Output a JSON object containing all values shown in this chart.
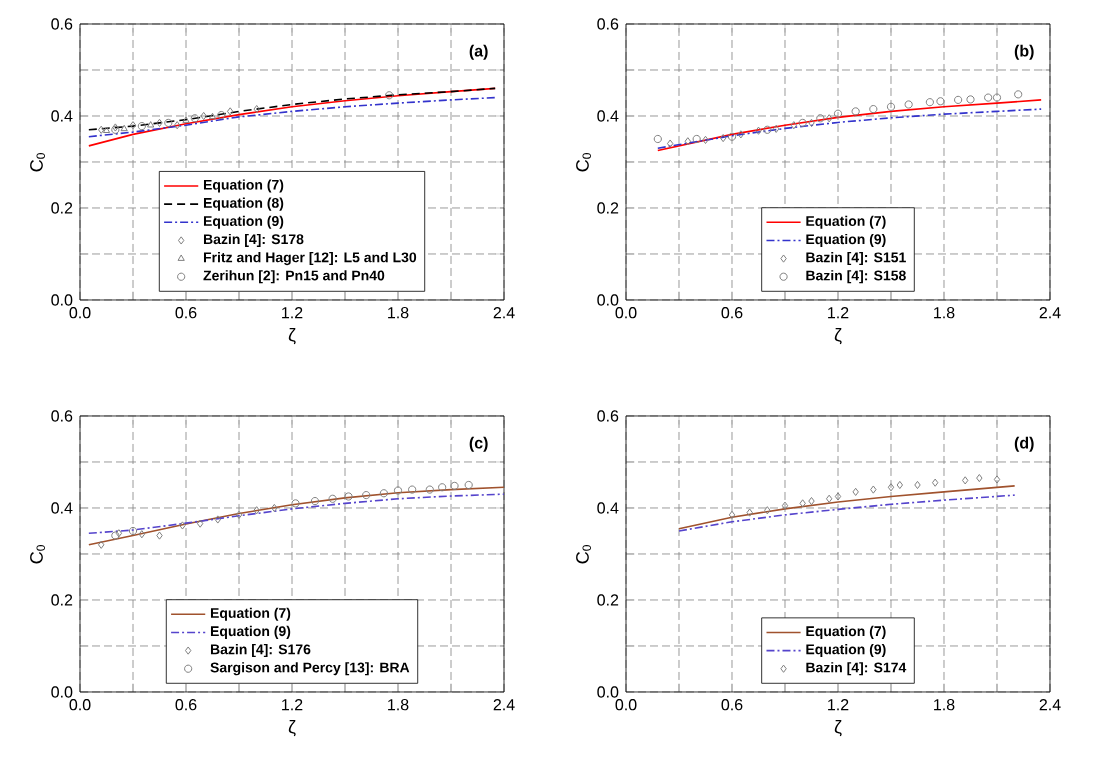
{
  "chart_data": [
    {
      "type": "line",
      "xlabel": "ζ",
      "ylabel": "C$_{0}$",
      "annotations": [
        "(a)"
      ],
      "grid": true,
      "legend": "bottom",
      "xlim": [
        0,
        2.4
      ],
      "ylim": [
        0,
        0.6
      ],
      "xticks": [
        {
          "value": 0,
          "label": "0.0"
        },
        {
          "value": 0.3,
          "label": null
        },
        {
          "value": 0.6,
          "label": "0.6"
        },
        {
          "value": 0.9,
          "label": null
        },
        {
          "value": 1.2,
          "label": "1.2"
        },
        {
          "value": 1.5,
          "label": null
        },
        {
          "value": 1.8,
          "label": "1.8"
        },
        {
          "value": 2.1,
          "label": null
        },
        {
          "value": 2.4,
          "label": "2.4"
        }
      ],
      "yticks": [
        {
          "value": 0,
          "label": "0.0"
        },
        {
          "value": 0.1,
          "label": null
        },
        {
          "value": 0.2,
          "label": "0.2"
        },
        {
          "value": 0.3,
          "label": null
        },
        {
          "value": 0.4,
          "label": "0.4"
        },
        {
          "value": 0.5,
          "label": null
        },
        {
          "value": 0.6,
          "label": "0.6"
        }
      ],
      "series": [
        {
          "name": "Equation (7)",
          "type": "line",
          "color": "#ff0000",
          "line_style": "solid",
          "marker": "none",
          "x": [
            0.05,
            0.3,
            0.6,
            0.9,
            1.2,
            1.5,
            1.8,
            2.1,
            2.35
          ],
          "values": [
            0.335,
            0.36,
            0.383,
            0.403,
            0.42,
            0.433,
            0.444,
            0.453,
            0.46
          ]
        },
        {
          "name": "Equation (8)",
          "type": "line",
          "color": "#000000",
          "line_style": "dashed",
          "marker": "none",
          "x": [
            0.05,
            0.3,
            0.6,
            0.9,
            1.2,
            1.5,
            1.8,
            2.1,
            2.35
          ],
          "values": [
            0.37,
            0.378,
            0.392,
            0.41,
            0.425,
            0.437,
            0.446,
            0.453,
            0.46
          ]
        },
        {
          "name": "Equation (9)",
          "type": "line",
          "color": "#3333cc",
          "line_style": "dashdot",
          "marker": "none",
          "x": [
            0.05,
            0.3,
            0.6,
            0.9,
            1.2,
            1.5,
            1.8,
            2.1,
            2.35
          ],
          "values": [
            0.355,
            0.365,
            0.38,
            0.398,
            0.41,
            0.42,
            0.428,
            0.435,
            0.44
          ]
        },
        {
          "name": "Bazin [4]: S178",
          "type": "scatter",
          "color": "#808080",
          "marker": "diamond",
          "x": [
            0.12,
            0.2,
            0.3,
            0.45,
            0.55,
            0.7,
            0.85,
            1.0
          ],
          "values": [
            0.37,
            0.375,
            0.38,
            0.385,
            0.38,
            0.4,
            0.41,
            0.415
          ]
        },
        {
          "name": "Fritz and Hager [12]: L5 and L30",
          "type": "scatter",
          "color": "#808080",
          "marker": "triangle",
          "x": [
            0.15,
            0.25,
            0.4,
            0.6,
            0.75
          ],
          "values": [
            0.368,
            0.372,
            0.38,
            0.39,
            0.398
          ]
        },
        {
          "name": "Zerihun [2]: Pn15 and Pn40",
          "type": "scatter",
          "color": "#808080",
          "marker": "circle",
          "x": [
            0.2,
            0.35,
            0.5,
            0.65,
            0.8,
            1.75
          ],
          "values": [
            0.37,
            0.378,
            0.385,
            0.395,
            0.402,
            0.445
          ]
        }
      ]
    },
    {
      "type": "line",
      "xlabel": "ζ",
      "ylabel": "C$_{0}$",
      "annotations": [
        "(b)"
      ],
      "grid": true,
      "legend": "bottom",
      "xlim": [
        0,
        2.4
      ],
      "ylim": [
        0,
        0.6
      ],
      "xticks": [
        {
          "value": 0,
          "label": "0.0"
        },
        {
          "value": 0.3,
          "label": null
        },
        {
          "value": 0.6,
          "label": "0.6"
        },
        {
          "value": 0.9,
          "label": null
        },
        {
          "value": 1.2,
          "label": "1.2"
        },
        {
          "value": 1.5,
          "label": null
        },
        {
          "value": 1.8,
          "label": "1.8"
        },
        {
          "value": 2.1,
          "label": null
        },
        {
          "value": 2.4,
          "label": "2.4"
        }
      ],
      "yticks": [
        {
          "value": 0,
          "label": "0.0"
        },
        {
          "value": 0.1,
          "label": null
        },
        {
          "value": 0.2,
          "label": "0.2"
        },
        {
          "value": 0.3,
          "label": null
        },
        {
          "value": 0.4,
          "label": "0.4"
        },
        {
          "value": 0.5,
          "label": null
        },
        {
          "value": 0.6,
          "label": "0.6"
        }
      ],
      "series": [
        {
          "name": "Equation (7)",
          "type": "line",
          "color": "#ff0000",
          "line_style": "solid",
          "marker": "none",
          "x": [
            0.18,
            0.6,
            0.9,
            1.2,
            1.5,
            1.8,
            2.1,
            2.35
          ],
          "values": [
            0.325,
            0.36,
            0.38,
            0.397,
            0.41,
            0.42,
            0.428,
            0.435
          ]
        },
        {
          "name": "Equation (9)",
          "type": "line",
          "color": "#3333cc",
          "line_style": "dashdot",
          "marker": "none",
          "x": [
            0.18,
            0.6,
            0.9,
            1.2,
            1.5,
            1.8,
            2.1,
            2.35
          ],
          "values": [
            0.33,
            0.357,
            0.373,
            0.386,
            0.396,
            0.404,
            0.41,
            0.415
          ]
        },
        {
          "name": "Bazin [4]: S151",
          "type": "scatter",
          "color": "#808080",
          "marker": "diamond",
          "x": [
            0.25,
            0.35,
            0.45,
            0.55,
            0.65,
            0.75,
            0.85,
            0.95,
            1.05,
            1.15
          ],
          "values": [
            0.34,
            0.345,
            0.348,
            0.352,
            0.36,
            0.368,
            0.372,
            0.38,
            0.385,
            0.395
          ]
        },
        {
          "name": "Bazin [4]: S158",
          "type": "scatter",
          "color": "#808080",
          "marker": "circle",
          "x": [
            0.18,
            0.4,
            0.6,
            0.8,
            1.0,
            1.1,
            1.2,
            1.3,
            1.4,
            1.5,
            1.6,
            1.72,
            1.78,
            1.88,
            1.95,
            2.05,
            2.1,
            2.22
          ],
          "values": [
            0.35,
            0.35,
            0.355,
            0.37,
            0.385,
            0.395,
            0.405,
            0.41,
            0.415,
            0.42,
            0.425,
            0.43,
            0.432,
            0.435,
            0.436,
            0.44,
            0.44,
            0.447
          ]
        }
      ]
    },
    {
      "type": "line",
      "xlabel": "ζ",
      "ylabel": "C$_{0}$",
      "annotations": [
        "(c)"
      ],
      "grid": true,
      "legend": "bottom",
      "xlim": [
        0,
        2.4
      ],
      "ylim": [
        0,
        0.6
      ],
      "xticks": [
        {
          "value": 0,
          "label": "0.0"
        },
        {
          "value": 0.3,
          "label": null
        },
        {
          "value": 0.6,
          "label": "0.6"
        },
        {
          "value": 0.9,
          "label": null
        },
        {
          "value": 1.2,
          "label": "1.2"
        },
        {
          "value": 1.5,
          "label": null
        },
        {
          "value": 1.8,
          "label": "1.8"
        },
        {
          "value": 2.1,
          "label": null
        },
        {
          "value": 2.4,
          "label": "2.4"
        }
      ],
      "yticks": [
        {
          "value": 0,
          "label": "0.0"
        },
        {
          "value": 0.1,
          "label": null
        },
        {
          "value": 0.2,
          "label": "0.2"
        },
        {
          "value": 0.3,
          "label": null
        },
        {
          "value": 0.4,
          "label": "0.4"
        },
        {
          "value": 0.5,
          "label": null
        },
        {
          "value": 0.6,
          "label": "0.6"
        }
      ],
      "series": [
        {
          "name": "Equation (7)",
          "type": "line",
          "color": "#a0522d",
          "line_style": "solid",
          "marker": "none",
          "x": [
            0.05,
            0.3,
            0.6,
            0.9,
            1.2,
            1.5,
            1.8,
            2.1,
            2.4
          ],
          "values": [
            0.32,
            0.34,
            0.365,
            0.388,
            0.407,
            0.422,
            0.433,
            0.44,
            0.445
          ]
        },
        {
          "name": "Equation (9)",
          "type": "line",
          "color": "#5544cc",
          "line_style": "dashdot",
          "marker": "none",
          "x": [
            0.05,
            0.3,
            0.6,
            0.9,
            1.2,
            1.5,
            1.8,
            2.1,
            2.4
          ],
          "values": [
            0.345,
            0.352,
            0.367,
            0.383,
            0.398,
            0.41,
            0.42,
            0.426,
            0.43
          ]
        },
        {
          "name": "Bazin [4]: S176",
          "type": "scatter",
          "color": "#808080",
          "marker": "diamond",
          "x": [
            0.12,
            0.22,
            0.35,
            0.45,
            0.58,
            0.68,
            0.78,
            0.9,
            1.0,
            1.1
          ],
          "values": [
            0.32,
            0.345,
            0.343,
            0.34,
            0.362,
            0.366,
            0.375,
            0.385,
            0.395,
            0.4
          ]
        },
        {
          "name": "Sargison and Percy [13]: BRA",
          "type": "scatter",
          "color": "#808080",
          "marker": "circle",
          "x": [
            0.2,
            0.3,
            1.22,
            1.33,
            1.43,
            1.52,
            1.62,
            1.72,
            1.8,
            1.88,
            1.98,
            2.05,
            2.12,
            2.2
          ],
          "values": [
            0.34,
            0.35,
            0.41,
            0.415,
            0.42,
            0.425,
            0.428,
            0.432,
            0.438,
            0.44,
            0.44,
            0.445,
            0.448,
            0.45
          ]
        }
      ]
    },
    {
      "type": "line",
      "xlabel": "ζ",
      "ylabel": "C$_{0}$",
      "annotations": [
        "(d)"
      ],
      "grid": true,
      "legend": "bottom",
      "xlim": [
        0,
        2.4
      ],
      "ylim": [
        0,
        0.6
      ],
      "xticks": [
        {
          "value": 0,
          "label": "0.0"
        },
        {
          "value": 0.3,
          "label": null
        },
        {
          "value": 0.6,
          "label": "0.6"
        },
        {
          "value": 0.9,
          "label": null
        },
        {
          "value": 1.2,
          "label": "1.2"
        },
        {
          "value": 1.5,
          "label": null
        },
        {
          "value": 1.8,
          "label": "1.8"
        },
        {
          "value": 2.1,
          "label": null
        },
        {
          "value": 2.4,
          "label": "2.4"
        }
      ],
      "yticks": [
        {
          "value": 0,
          "label": "0.0"
        },
        {
          "value": 0.1,
          "label": null
        },
        {
          "value": 0.2,
          "label": "0.2"
        },
        {
          "value": 0.3,
          "label": null
        },
        {
          "value": 0.4,
          "label": "0.4"
        },
        {
          "value": 0.5,
          "label": null
        },
        {
          "value": 0.6,
          "label": "0.6"
        }
      ],
      "series": [
        {
          "name": "Equation (7)",
          "type": "line",
          "color": "#a0522d",
          "line_style": "solid",
          "marker": "none",
          "x": [
            0.3,
            0.6,
            0.9,
            1.2,
            1.5,
            1.8,
            2.2
          ],
          "values": [
            0.355,
            0.38,
            0.398,
            0.413,
            0.425,
            0.435,
            0.448
          ]
        },
        {
          "name": "Equation (9)",
          "type": "line",
          "color": "#5544cc",
          "line_style": "dashdot",
          "marker": "none",
          "x": [
            0.3,
            0.6,
            0.9,
            1.2,
            1.5,
            1.8,
            2.2
          ],
          "values": [
            0.35,
            0.37,
            0.385,
            0.397,
            0.408,
            0.417,
            0.428
          ]
        },
        {
          "name": "Bazin [4]: S174",
          "type": "scatter",
          "color": "#808080",
          "marker": "diamond",
          "x": [
            0.6,
            0.7,
            0.8,
            0.9,
            1.0,
            1.05,
            1.15,
            1.2,
            1.3,
            1.4,
            1.5,
            1.55,
            1.65,
            1.75,
            1.92,
            2.0,
            2.1
          ],
          "values": [
            0.385,
            0.39,
            0.395,
            0.405,
            0.41,
            0.415,
            0.42,
            0.425,
            0.435,
            0.44,
            0.445,
            0.45,
            0.45,
            0.455,
            0.46,
            0.465,
            0.462
          ]
        }
      ]
    }
  ]
}
